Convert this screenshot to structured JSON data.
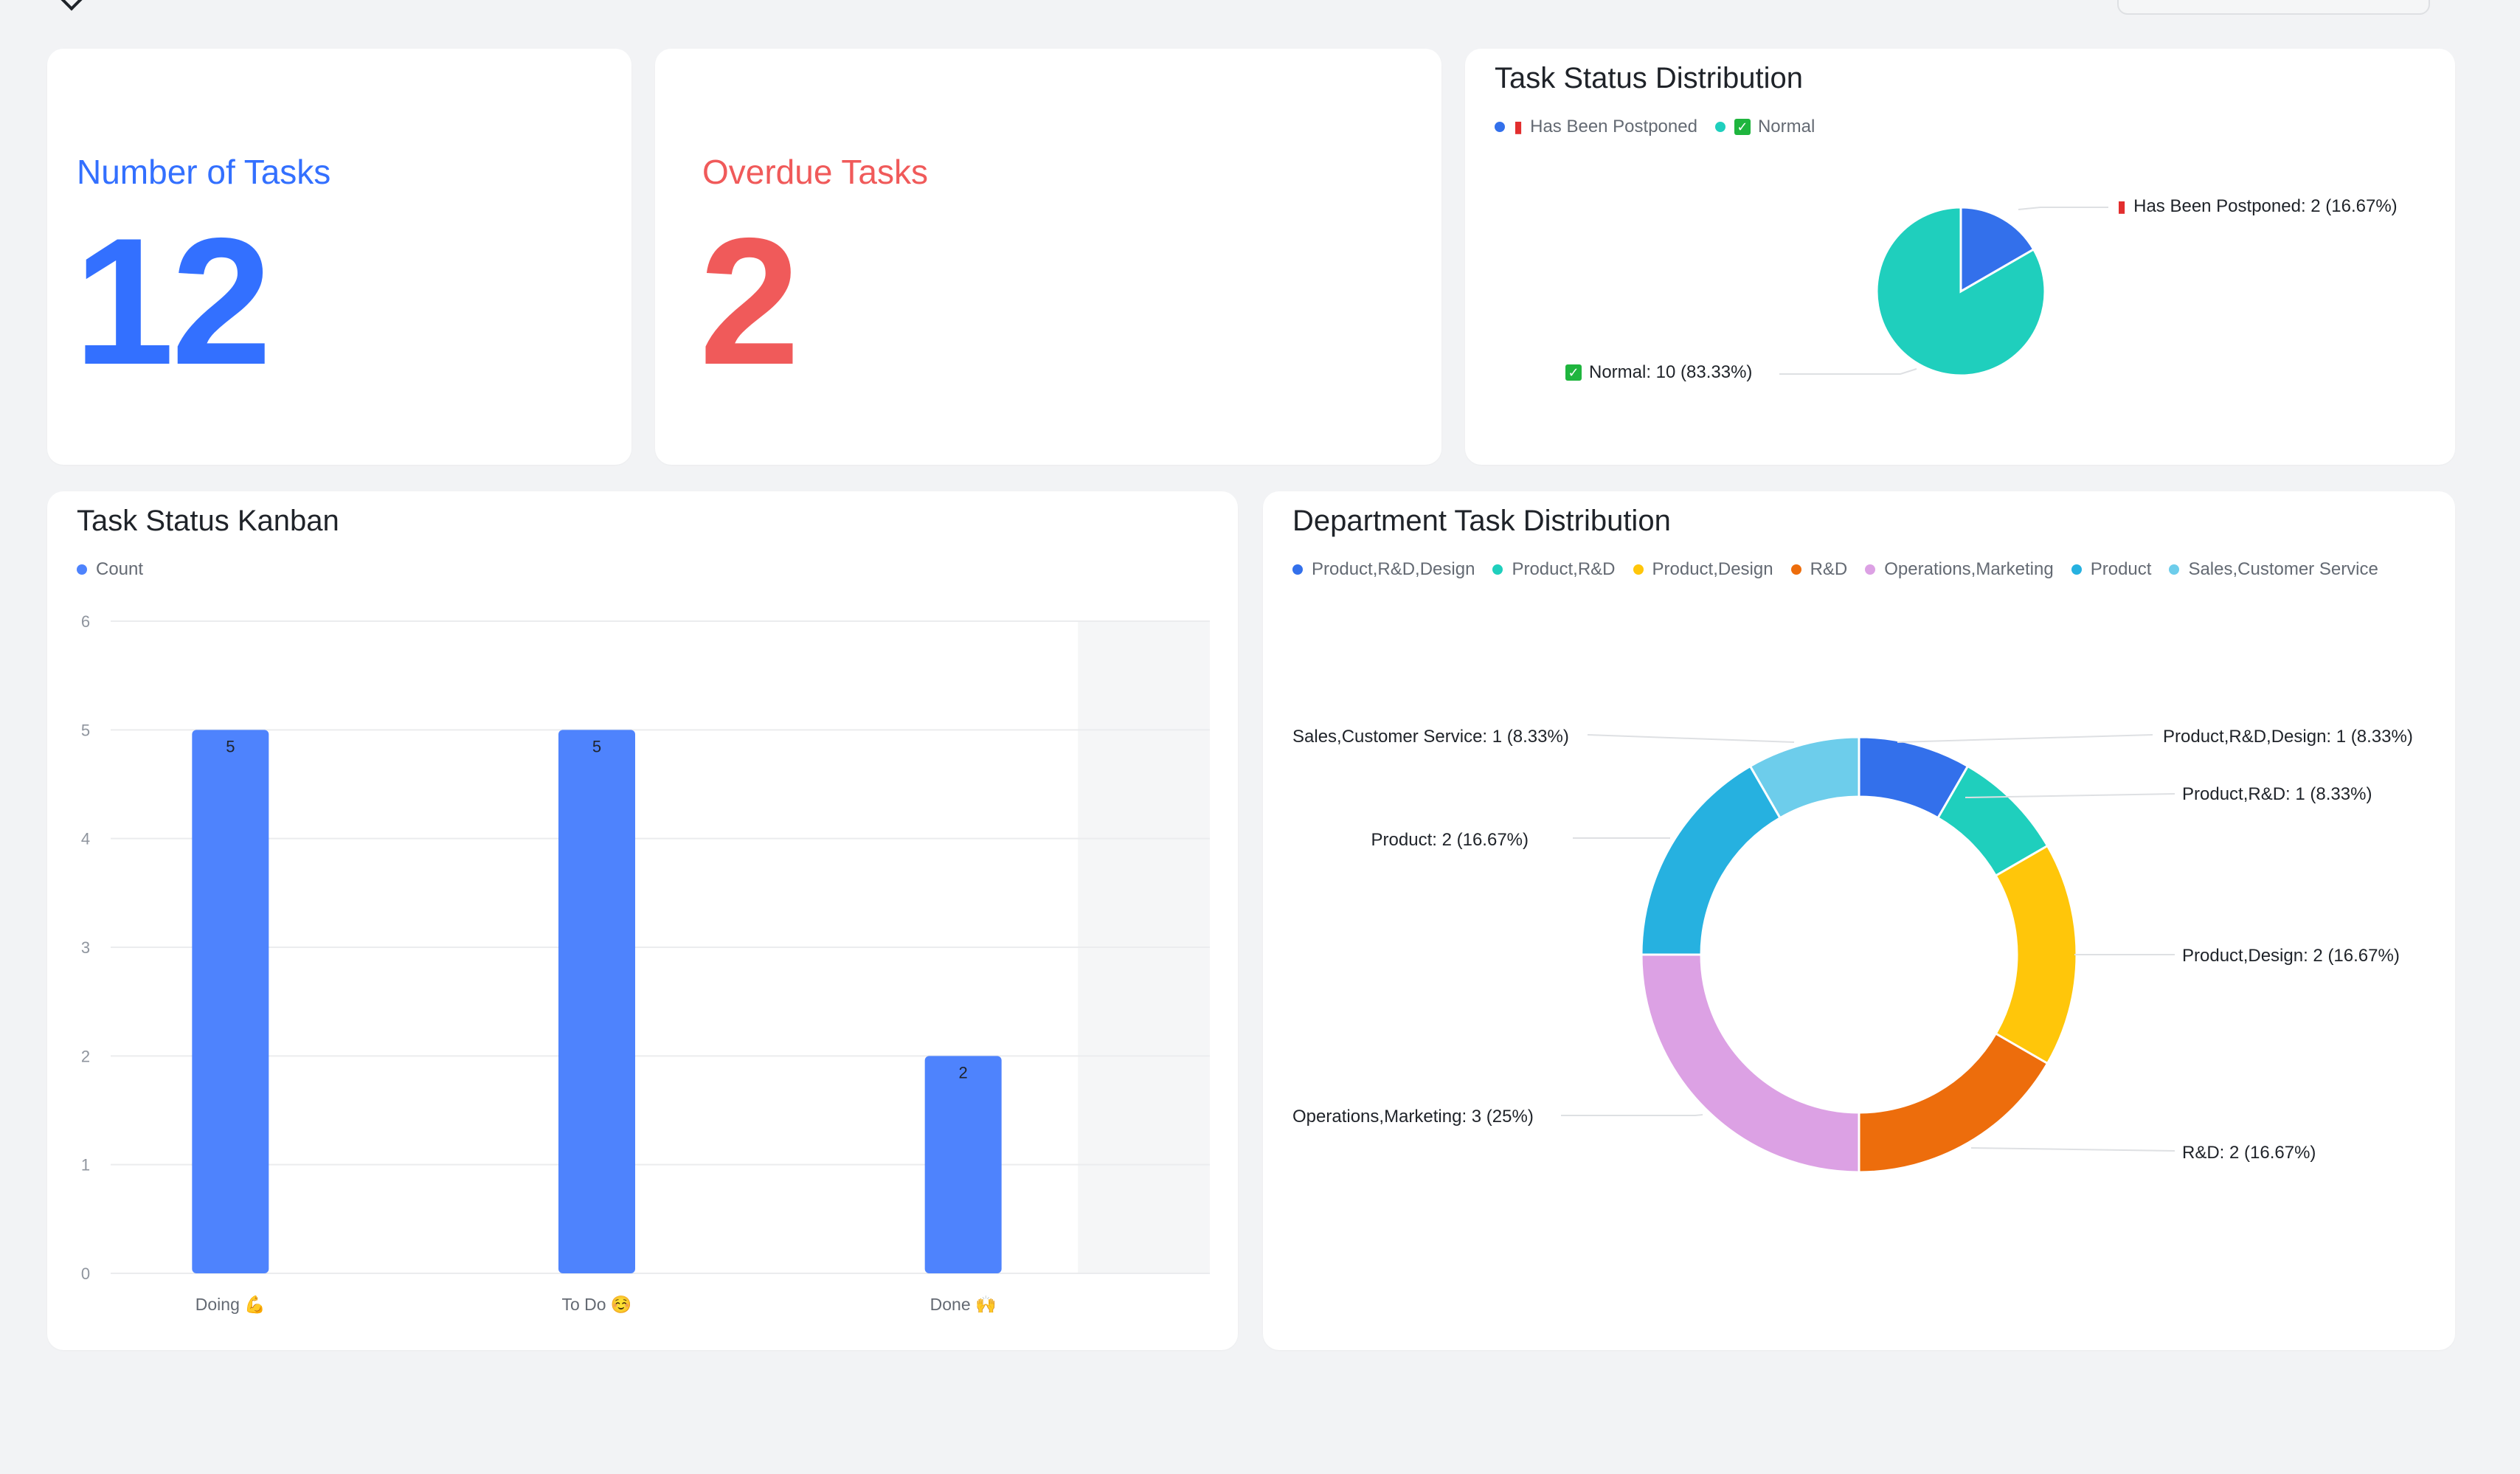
{
  "page": {
    "background": "#f2f3f5"
  },
  "metrics": {
    "tasks": {
      "label": "Number of Tasks",
      "value": "12",
      "color": "#3370ff"
    },
    "overdue": {
      "label": "Overdue Tasks",
      "value": "2",
      "color": "#f05a5a"
    }
  },
  "status_distribution": {
    "title": "Task Status Distribution",
    "legend": [
      {
        "label": "Has Been Postponed",
        "color": "#3370eb",
        "icon": "emergency-light-icon"
      },
      {
        "label": "Normal",
        "color": "#1fcfbd",
        "icon": "check-mark-icon"
      }
    ],
    "callouts": {
      "postponed": "Has Been Postponed: 2 (16.67%)",
      "normal": "Normal: 10 (83.33%)"
    }
  },
  "kanban": {
    "title": "Task Status Kanban",
    "legend": [
      {
        "label": "Count",
        "color": "#4e83fd"
      }
    ]
  },
  "department": {
    "title": "Department Task Distribution",
    "legend": [
      {
        "label": "Product,R&D,Design",
        "color": "#3370eb"
      },
      {
        "label": "Product,R&D",
        "color": "#1fcfbd"
      },
      {
        "label": "Product,Design",
        "color": "#ffc60a"
      },
      {
        "label": "R&D",
        "color": "#ed6d0c"
      },
      {
        "label": "Operations,Marketing",
        "color": "#dca1e4"
      },
      {
        "label": "Product",
        "color": "#26b1e0"
      },
      {
        "label": "Sales,Customer Service",
        "color": "#6dcdeb"
      }
    ]
  },
  "chart_data": [
    {
      "type": "pie",
      "title": "Task Status Distribution",
      "slices": [
        {
          "label": "Has Been Postponed",
          "value": 2,
          "percent": "16.67%",
          "color": "#3370eb"
        },
        {
          "label": "Normal",
          "value": 10,
          "percent": "83.33%",
          "color": "#1fcfbd"
        }
      ]
    },
    {
      "type": "bar",
      "title": "Task Status Kanban",
      "categories": [
        "Doing 💪",
        "To Do ☺️",
        "Done 🙌"
      ],
      "series": [
        {
          "name": "Count",
          "values": [
            5,
            5,
            2
          ],
          "color": "#4e83fd"
        }
      ],
      "ylim": [
        0,
        6
      ],
      "yticks": [
        "0",
        "1",
        "2",
        "3",
        "4",
        "5",
        "6"
      ],
      "grid": true,
      "highlighted_category": "Done 🙌"
    },
    {
      "type": "pie",
      "variant": "donut",
      "title": "Department Task Distribution",
      "slices": [
        {
          "label": "Product,R&D,Design",
          "value": 1,
          "percent": "8.33%",
          "color": "#3370eb"
        },
        {
          "label": "Product,R&D",
          "value": 1,
          "percent": "8.33%",
          "color": "#1fcfbd"
        },
        {
          "label": "Product,Design",
          "value": 2,
          "percent": "16.67%",
          "color": "#ffc60a"
        },
        {
          "label": "R&D",
          "value": 2,
          "percent": "16.67%",
          "color": "#ed6d0c"
        },
        {
          "label": "Operations,Marketing",
          "value": 3,
          "percent": "25%",
          "color": "#dca1e4"
        },
        {
          "label": "Product",
          "value": 2,
          "percent": "16.67%",
          "color": "#26b1e0"
        },
        {
          "label": "Sales,Customer Service",
          "value": 1,
          "percent": "8.33%",
          "color": "#6dcdeb"
        }
      ]
    }
  ]
}
